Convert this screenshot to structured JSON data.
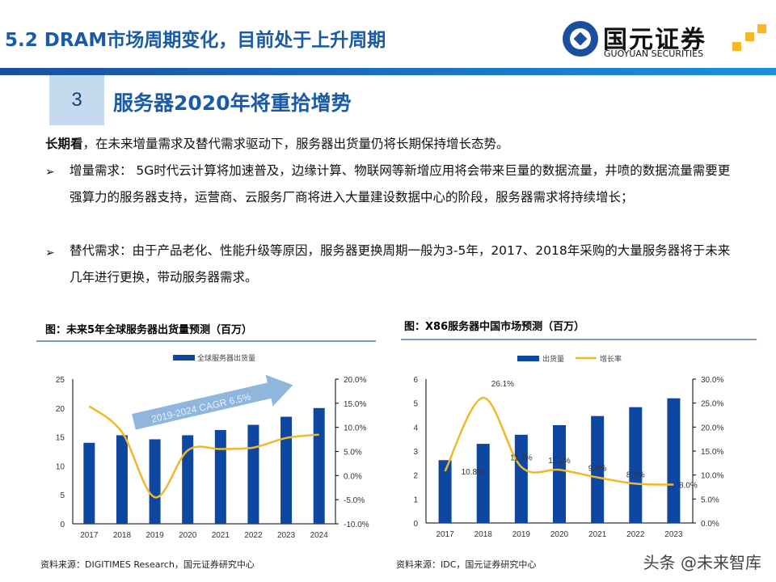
{
  "header": {
    "title": "5.2 DRAM市场周期变化，目前处于上升周期",
    "logo_cn": "国元证券",
    "logo_en": "GUOYUAN SECURITIES",
    "accent": "#1a5aa6"
  },
  "section": {
    "number": "3",
    "title": "服务器2020年将重拾增势"
  },
  "body": {
    "lead_bold": "长期看",
    "lead_text": "，在未来增量需求及替代需求驱动下，服务器出货量仍将长期保持增长态势。",
    "bullets": [
      {
        "icon": "arrow-bullet-icon",
        "text": "增量需求： 5G时代云计算将加速普及，边缘计算、物联网等新增应用将会带来巨量的数据流量，井喷的数据流量需要更强算力的服务器支持，运营商、云服务厂商将进入大量建设数据中心的阶段，服务器需求将持续增长；"
      },
      {
        "icon": "arrow-bullet-icon",
        "text": "替代需求：由于产品老化、性能升级等原因，服务器更换周期一般为3-5年，2017、2018年采购的大量服务器将于未来几年进行更换，带动服务器需求。"
      }
    ]
  },
  "chart_data": [
    {
      "type": "bar",
      "title": "图：未来5年全球服务器出货量预测（百万）",
      "categories": [
        "2017",
        "2018",
        "2019",
        "2020",
        "2021",
        "2022",
        "2023",
        "2024"
      ],
      "series": [
        {
          "name": "全球服务器出货量",
          "type": "bar",
          "axis": "left",
          "color": "#0d47a1",
          "values": [
            14.0,
            15.3,
            14.6,
            15.3,
            16.2,
            17.1,
            18.5,
            20.0
          ]
        },
        {
          "type": "line",
          "axis": "right",
          "color": "#f0b929",
          "values": [
            14.4,
            9.0,
            -4.5,
            5.2,
            5.5,
            5.8,
            7.8,
            8.5
          ]
        }
      ],
      "y_left": {
        "ticks": [
          "0",
          "5",
          "10",
          "15",
          "20",
          "25"
        ],
        "lim": [
          0,
          25
        ]
      },
      "y_right": {
        "ticks": [
          "-10.0%",
          "-5.0%",
          "0.0%",
          "5.0%",
          "10.0%",
          "15.0%",
          "20.0%"
        ],
        "lim": [
          -10,
          20
        ]
      },
      "annotation": "2019-2024  CAGR 6.5%",
      "legend": "top",
      "source": "资料来源：DIGITIMES Research，国元证券研究中心"
    },
    {
      "type": "bar",
      "title": "图：X86服务器中国市场预测（百万）",
      "categories": [
        "2017",
        "2018",
        "2019",
        "2020",
        "2021",
        "2022",
        "2023"
      ],
      "series": [
        {
          "name": "出货量",
          "type": "bar",
          "axis": "left",
          "color": "#0d47a1",
          "values": [
            2.62,
            3.3,
            3.68,
            4.08,
            4.46,
            4.83,
            5.2
          ]
        },
        {
          "name": "增长率",
          "type": "line",
          "axis": "right",
          "color": "#f0b929",
          "values": [
            10.8,
            26.1,
            11.7,
            11.1,
            9.5,
            8.2,
            8.0
          ],
          "labels": [
            "10.8%",
            "26.1%",
            "11.7%",
            "11.1%",
            "9.5%",
            "8.2%",
            "8.0%"
          ]
        }
      ],
      "y_left": {
        "ticks": [
          "0",
          "1",
          "2",
          "3",
          "4",
          "5",
          "6"
        ],
        "lim": [
          0,
          6
        ]
      },
      "y_right": {
        "ticks": [
          "0.0%",
          "5.0%",
          "10.0%",
          "15.0%",
          "20.0%",
          "25.0%",
          "30.0%"
        ],
        "lim": [
          0,
          30
        ]
      },
      "legend": "top",
      "source": "资料来源：IDC，国元证券研究中心"
    }
  ],
  "watermark": "头条 @未来智库"
}
